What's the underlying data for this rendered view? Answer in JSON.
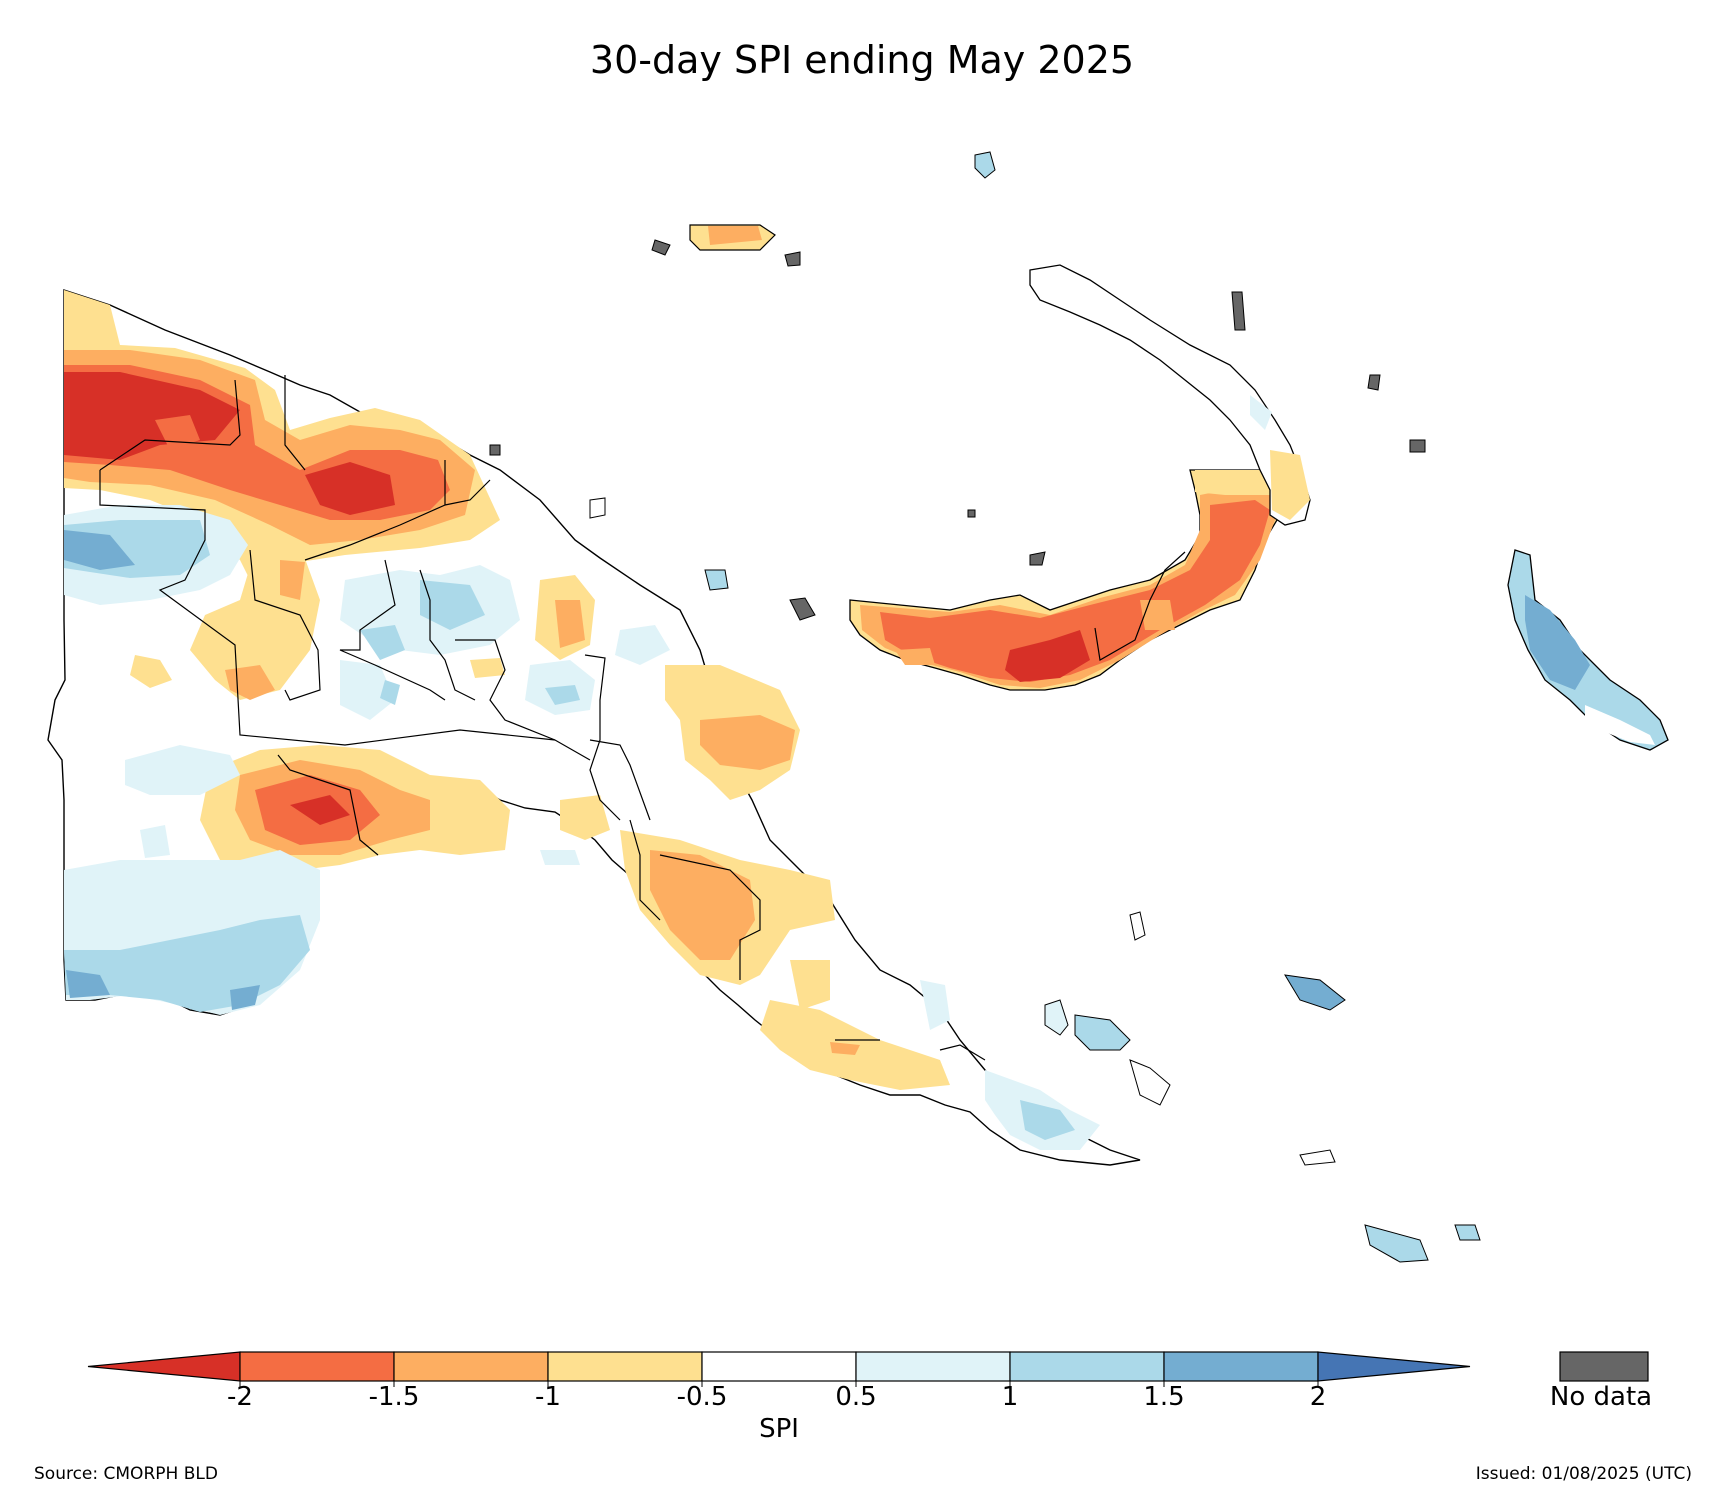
{
  "title": "30-day SPI ending May 2025",
  "colorbar": {
    "label": "SPI",
    "ticks": [
      "-2",
      "-1.5",
      "-1",
      "-0.5",
      "0.5",
      "1",
      "1.5",
      "2"
    ],
    "colors": [
      "#d73027",
      "#f46d43",
      "#fdae61",
      "#fee090",
      "#ffffff",
      "#e0f3f8",
      "#abd9e9",
      "#74add1",
      "#4575b4"
    ],
    "extend": "both"
  },
  "no_data": {
    "label": "No data",
    "color": "#666666"
  },
  "source": "Source: CMORPH BLD",
  "issued": "Issued: 01/08/2025 (UTC)"
}
